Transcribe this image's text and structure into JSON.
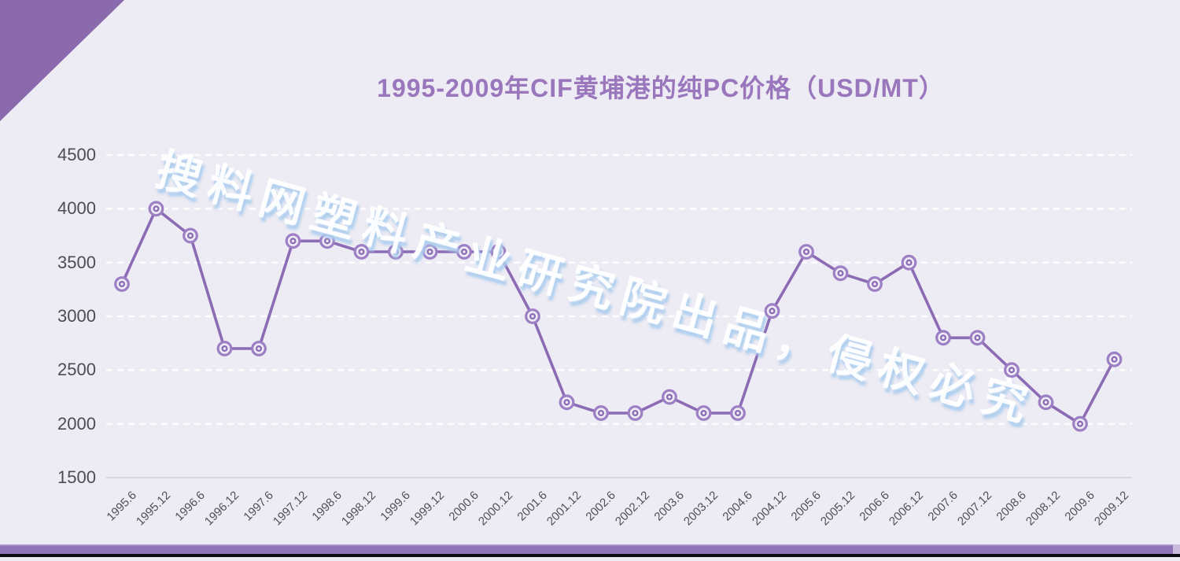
{
  "page": {
    "background_color": "#EDEBF3",
    "corner_triangle_color": "#8A6AAD",
    "bottom_bar_color": "#8F74B8",
    "bottom_strip_color": "#0B0A14"
  },
  "watermark": {
    "text": "搜料网塑料产业研究院出品，侵权必究"
  },
  "chart_data": {
    "type": "line",
    "title": "1995-2009年CIF黄埔港的纯PC价格（USD/MT）",
    "title_color": "#9A76BC",
    "categories": [
      "1995.6",
      "1995.12",
      "1996.6",
      "1996.12",
      "1997.6",
      "1997.12",
      "1998.6",
      "1998.12",
      "1999.6",
      "1999.12",
      "2000.6",
      "2000.12",
      "2001.6",
      "2001.12",
      "2002.6",
      "2002.12",
      "2003.6",
      "2003.12",
      "2004.6",
      "2004.12",
      "2005.6",
      "2005.12",
      "2006.6",
      "2006.12",
      "2007.6",
      "2007.12",
      "2008.6",
      "2008.12",
      "2009.6",
      "2009.12"
    ],
    "values": [
      3300,
      4000,
      3750,
      2700,
      2700,
      3700,
      3700,
      3600,
      3600,
      3600,
      3600,
      3600,
      3000,
      2200,
      2100,
      2100,
      2250,
      2100,
      2100,
      3050,
      3600,
      3400,
      3300,
      3500,
      2800,
      2800,
      2500,
      2200,
      2000,
      2600
    ],
    "xlabel": "",
    "ylabel": "",
    "ylim": [
      1500,
      4500
    ],
    "yticks": [
      4500,
      4000,
      3500,
      3000,
      2500,
      2000,
      1500
    ],
    "grid": "horizontal-dashed-white",
    "legend": "none",
    "line_color": "#8C6BB5",
    "marker_ring_color": "#9C7FC4",
    "marker_style": "circle-with-center-dot",
    "axis_line_color": "#D9D5DD",
    "tick_label_color": "#4E4B55"
  }
}
